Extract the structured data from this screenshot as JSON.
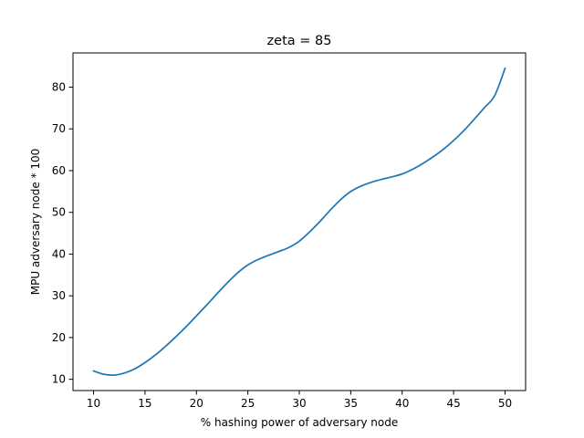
{
  "chart_data": {
    "type": "line",
    "title": "zeta = 85",
    "xlabel": "% hashing power of adversary node",
    "ylabel": "MPU adversary node * 100",
    "xlim": [
      8,
      52
    ],
    "ylim": [
      7.3,
      88.2
    ],
    "xticks": [
      10,
      15,
      20,
      25,
      30,
      35,
      40,
      45,
      50
    ],
    "yticks": [
      10,
      20,
      30,
      40,
      50,
      60,
      70,
      80
    ],
    "grid": false,
    "series": [
      {
        "color": "#1f77b4",
        "x": [
          10,
          11,
          12,
          13,
          14,
          15,
          16,
          17,
          18,
          19,
          20,
          21,
          22,
          23,
          24,
          25,
          26,
          27,
          28,
          29,
          30,
          31,
          32,
          33,
          34,
          35,
          36,
          37,
          38,
          39,
          40,
          41,
          42,
          43,
          44,
          45,
          46,
          47,
          48,
          49,
          50
        ],
        "y": [
          12.0,
          11.2,
          11.0,
          11.5,
          12.5,
          14.0,
          15.8,
          17.9,
          20.2,
          22.6,
          25.2,
          27.8,
          30.5,
          33.1,
          35.5,
          37.4,
          38.7,
          39.7,
          40.6,
          41.6,
          43.1,
          45.3,
          47.8,
          50.5,
          53.0,
          55.0,
          56.3,
          57.2,
          57.9,
          58.5,
          59.2,
          60.3,
          61.7,
          63.3,
          65.1,
          67.2,
          69.6,
          72.3,
          75.1,
          78.0,
          84.5
        ]
      }
    ]
  }
}
